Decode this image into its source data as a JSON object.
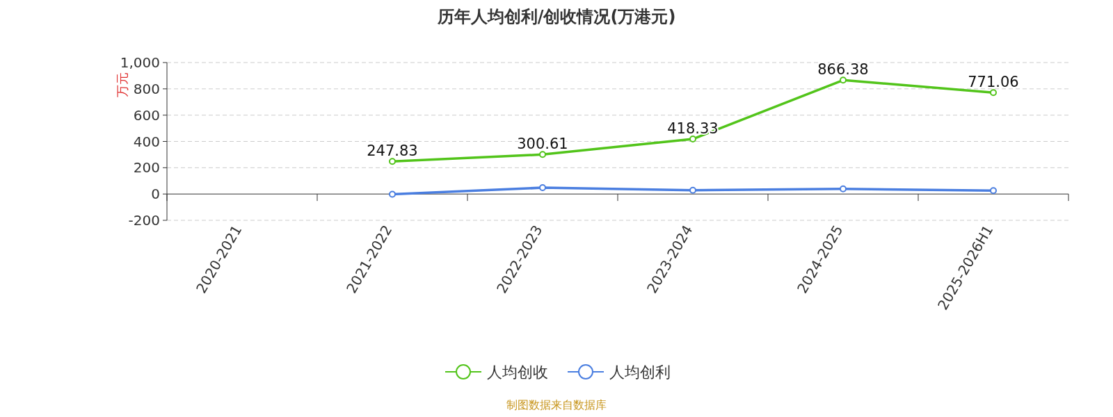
{
  "chart_data": {
    "type": "line",
    "title": "历年人均创利/创收情况(万港元)",
    "ylabel": "万元",
    "categories": [
      "2020-2021",
      "2021-2022",
      "2022-2023",
      "2023-2024",
      "2024-2025",
      "2025-2026H1"
    ],
    "series": [
      {
        "name": "人均创收",
        "color": "#52c41a",
        "values": [
          null,
          247.83,
          300.61,
          418.33,
          866.38,
          771.06
        ],
        "value_labels": [
          null,
          "247.83",
          "300.61",
          "418.33",
          "866.38",
          "771.06"
        ]
      },
      {
        "name": "人均创利",
        "color": "#4a7ee0",
        "values": [
          null,
          -2,
          48,
          29,
          39,
          26
        ]
      }
    ],
    "ylim": [
      -200,
      1000
    ],
    "yticks": [
      {
        "value": -200,
        "label": "-200"
      },
      0,
      200,
      400,
      600,
      800,
      {
        "value": 1000,
        "label": "1,000"
      }
    ],
    "grid": "y",
    "legend": "bottom",
    "marker": "circle",
    "line_style": "solid",
    "annotations": [
      "制图数据来自数据库"
    ]
  }
}
